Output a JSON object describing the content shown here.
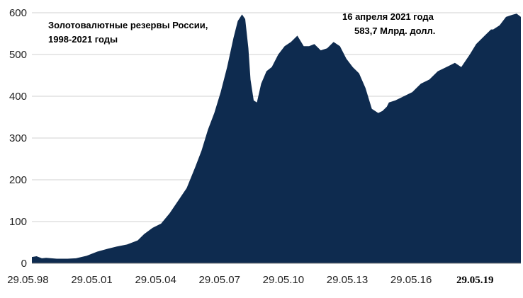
{
  "chart_data": {
    "type": "area",
    "title": [
      "Золотовалютные резервы России,",
      "1998-2021 годы"
    ],
    "annotation": [
      "16 апреля   2021 года",
      "583,7 Млрд. долл."
    ],
    "xlabel": "",
    "ylabel": "",
    "ylim": [
      0,
      600
    ],
    "yticks": [
      0,
      100,
      200,
      300,
      400,
      500,
      600
    ],
    "xticks": [
      {
        "label": "29.05.98",
        "x": 1998.41,
        "bold": false
      },
      {
        "label": "29.05.01",
        "x": 2001.41,
        "bold": false
      },
      {
        "label": "29.05.04",
        "x": 2004.41,
        "bold": false
      },
      {
        "label": "29.05.07",
        "x": 2007.41,
        "bold": false
      },
      {
        "label": "29.05.10",
        "x": 2010.41,
        "bold": false
      },
      {
        "label": "29.05.13",
        "x": 2013.41,
        "bold": false
      },
      {
        "label": "29.05.16",
        "x": 2016.41,
        "bold": false
      },
      {
        "label": "29.05.19",
        "x": 2019.41,
        "bold": true
      }
    ],
    "xlim": [
      1998.33,
      2021.3
    ],
    "grid": true,
    "color": "#0e2b4f",
    "series": [
      {
        "x": [
          1998.33,
          1998.55,
          1998.8,
          1999.0,
          1999.5,
          2000.0,
          2000.4,
          2000.9,
          2001.4,
          2001.9,
          2002.3,
          2002.8,
          2003.3,
          2003.6,
          2004.0,
          2004.4,
          2004.8,
          2005.2,
          2005.6,
          2006.0,
          2006.3,
          2006.6,
          2006.9,
          2007.2,
          2007.5,
          2007.8,
          2008.0,
          2008.2,
          2008.35,
          2008.5,
          2008.6,
          2008.75,
          2008.9,
          2009.1,
          2009.35,
          2009.6,
          2009.9,
          2010.2,
          2010.5,
          2010.8,
          2011.1,
          2011.35,
          2011.6,
          2011.9,
          2012.2,
          2012.5,
          2012.8,
          2013.1,
          2013.4,
          2013.7,
          2014.0,
          2014.3,
          2014.6,
          2014.8,
          2015.0,
          2015.1,
          2015.4,
          2015.8,
          2016.2,
          2016.6,
          2017.0,
          2017.4,
          2017.8,
          2018.2,
          2018.5,
          2018.9,
          2019.2,
          2019.6,
          2019.9,
          2020.0,
          2020.3,
          2020.6,
          2020.9,
          2021.1,
          2021.3
        ],
        "values": [
          15,
          17,
          12,
          13,
          11,
          11,
          12,
          18,
          28,
          35,
          40,
          45,
          55,
          70,
          85,
          95,
          120,
          150,
          180,
          230,
          270,
          320,
          360,
          410,
          470,
          540,
          580,
          596,
          585,
          515,
          440,
          390,
          385,
          430,
          460,
          470,
          500,
          520,
          530,
          545,
          520,
          520,
          525,
          510,
          515,
          530,
          520,
          490,
          470,
          455,
          420,
          370,
          360,
          365,
          375,
          385,
          390,
          400,
          410,
          430,
          440,
          460,
          470,
          480,
          470,
          500,
          525,
          545,
          560,
          560,
          570,
          590,
          595,
          598,
          590
        ]
      }
    ]
  }
}
